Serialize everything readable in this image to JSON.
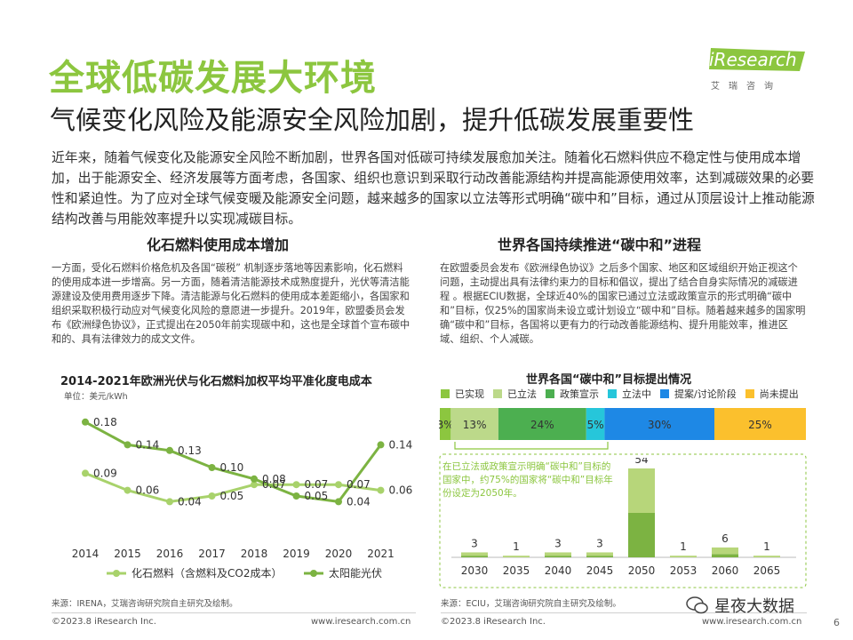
{
  "header": {
    "title": "全球低碳发展大环境",
    "subtitle": "气候变化风险及能源安全风险加剧，提升低碳发展重要性",
    "logo_text": "iResearch",
    "logo_cn": "艾瑞咨询"
  },
  "intro": "近年来，随着气候变化及能源安全风险不断加剧，世界各国对低碳可持续发展愈加关注。随着化石燃料供应不稳定性与使用成本增加，出于能源安全、经济发展等方面考虑，各国家、组织也意识到采取行动改善能源结构并提高能源使用效率，达到减碳效果的必要性和紧迫性。为了应对全球气候变暖及能源安全问题，越来越多的国家以立法等形式明确“碳中和”目标，通过从顶层设计上推动能源结构改善与用能效率提升以实现减碳目标。",
  "left": {
    "section_title": "化石燃料使用成本增加",
    "paragraph": "一方面，受化石燃料价格危机及各国“碳税” 机制逐步落地等因素影响，化石燃料的使用成本进一步增高。另一方面，随着清洁能源技术成熟度提升，光伏等清洁能源建设及使用费用逐步下降。清洁能源与化石燃料的使用成本差距缩小，各国家和组织采取积极行动应对气候变化风险的意愿进一步提升。2019年，欧盟委员会发布《欧洲绿色协议》，正式提出在2050年前实现碳中和，这也是全球首个宣布碳中和的、具有法律效力的成文文件。",
    "chart_title": "2014-2021年欧洲光伏与化石燃料加权平均平准化度电成本",
    "unit": "单位：美元/kWh",
    "source": "来源：IRENA，艾瑞咨询研究院自主研究及绘制。",
    "copyright": "©2023.8 iResearch Inc.",
    "site": "www.iresearch.com.cn"
  },
  "right": {
    "section_title": "世界各国持续推进“碳中和”进程",
    "paragraph": "在欧盟委员会发布《欧洲绿色协议》之后多个国家、地区和区域组织开始正视这个问题，主动提出具有法律约束力的目标和倡议，提出了结合自身实际情况的减碳进程 。根据ECIU数据，全球近40%的国家已通过立法或政策宣示的形式明确“碳中和”目标，仅25%的国家尚未设立或计划设立“碳中和”目标。随着越来越多的国家明确“碳中和”目标，各国将以更有力的行动改善能源结构、提升用能效率，推进区域、组织、个人减碳。",
    "chart_title": "世界各国“碳中和”目标提出情况",
    "callout": "在已立法或政策宣示明确“碳中和”目标的国家中，约75%的国家将“碳中和”目标年份设定为2050年。",
    "source": "来源：ECIU，艾瑞咨询研究院自主研究及绘制。",
    "copyright": "©2023.8 iResearch Inc.",
    "site": "www.iresearch.com.cn"
  },
  "watermark": "星夜大数据",
  "page_number": "6",
  "colors": {
    "accent": "#8cc63f",
    "light_green": "#bcd98a",
    "fossil_line": "#a8d26b",
    "solar_line": "#7cb342",
    "bar_dark": "#7cb342",
    "bar_light": "#b7d67a",
    "policy": "#4caf50",
    "legislating": "#26c6da",
    "proposal": "#1e88e5",
    "not_yet": "#fbc02d"
  },
  "chart_data": [
    {
      "type": "line",
      "title": "2014-2021年欧洲光伏与化石燃料加权平均平准化度电成本",
      "x": [
        "2014",
        "2015",
        "2016",
        "2017",
        "2018",
        "2019",
        "2020",
        "2021"
      ],
      "ylabel": "单位：美元/kWh",
      "ylim": [
        0,
        0.2
      ],
      "grid": false,
      "legend": "bottom",
      "series": [
        {
          "name": "化石燃料（含燃料及CO2成本）",
          "values": [
            0.09,
            0.06,
            0.04,
            0.05,
            0.07,
            0.07,
            0.07,
            0.06
          ],
          "labels": [
            "0.09",
            "0.06",
            "0.04",
            "0.05",
            "0.07",
            "0.07",
            "0.07",
            "0.06"
          ]
        },
        {
          "name": "太阳能光伏",
          "values": [
            0.18,
            0.14,
            0.13,
            0.1,
            0.08,
            0.05,
            0.04,
            0.14
          ],
          "labels": [
            "0.18",
            "0.14",
            "0.13",
            "0.10",
            "0.08",
            "0.05",
            "0.04",
            "0.14"
          ]
        }
      ]
    },
    {
      "type": "bar",
      "stacked": true,
      "orientation": "horizontal",
      "title": "世界各国“碳中和”目标提出情况",
      "legend": "top",
      "categories": [
        "已实现",
        "已立法",
        "政策宣示",
        "立法中",
        "提案/讨论阶段",
        "尚未提出"
      ],
      "values": [
        3,
        13,
        24,
        5,
        30,
        25
      ],
      "labels": [
        "3%",
        "13%",
        "24%",
        "5%",
        "30%",
        "25%"
      ]
    },
    {
      "type": "bar",
      "stacked": true,
      "categories": [
        "2030",
        "2035",
        "2040",
        "2045",
        "2050",
        "2053",
        "2060",
        "2065"
      ],
      "series": [
        {
          "values": [
            1,
            0,
            1,
            1,
            27,
            0,
            2,
            0
          ]
        },
        {
          "values": [
            2,
            1,
            2,
            2,
            27,
            1,
            4,
            1
          ]
        }
      ],
      "totals": [
        3,
        1,
        3,
        3,
        54,
        1,
        6,
        1
      ]
    }
  ]
}
